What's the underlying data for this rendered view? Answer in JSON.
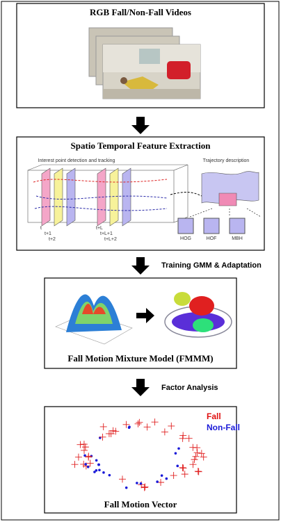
{
  "videos": {
    "title": "RGB Fall/Non-Fall Videos"
  },
  "features": {
    "title": "Spatio Temporal Feature Extraction",
    "left_label": "Interest point detection and tracking",
    "right_label": "Trajectory description",
    "frame_labels": [
      "t",
      "t+1",
      "t+2",
      "t+L",
      "t+L+1",
      "t+L+2"
    ],
    "descriptors": [
      "HOG",
      "HOF",
      "MBH"
    ]
  },
  "steps": [
    "Training GMM & Adaptation",
    "Factor Analysis"
  ],
  "mixture": {
    "title": "Fall Motion Mixture Model (FMMM)"
  },
  "vector": {
    "title": "Fall Motion Vector",
    "legend": [
      "Fall",
      "Non-Fall"
    ]
  }
}
